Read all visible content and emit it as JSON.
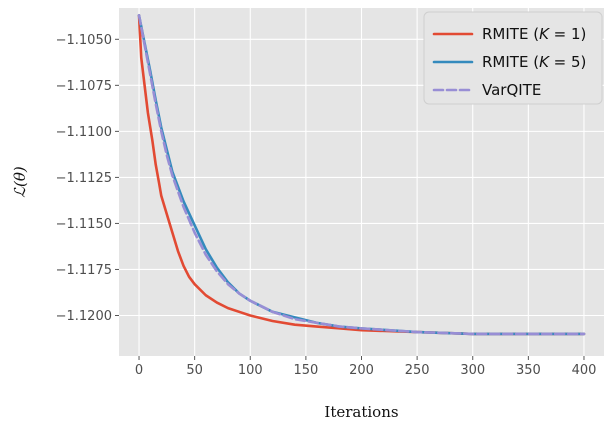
{
  "chart_data": {
    "type": "line",
    "title": "",
    "xlabel": "Iterations",
    "ylabel": "ℒ(θ)",
    "xlim": [
      -18,
      418
    ],
    "ylim": [
      -1.1222,
      -1.1033
    ],
    "grid": true,
    "legend_position": "top-right",
    "x_ticks": [
      0,
      50,
      100,
      150,
      200,
      250,
      300,
      350,
      400
    ],
    "x_tick_labels": [
      "0",
      "50",
      "100",
      "150",
      "200",
      "250",
      "300",
      "350",
      "400"
    ],
    "y_ticks": [
      -1.105,
      -1.1075,
      -1.11,
      -1.1125,
      -1.115,
      -1.1175,
      -1.12
    ],
    "y_tick_labels": [
      "−1.1050",
      "−1.1075",
      "−1.1100",
      "−1.1125",
      "−1.1150",
      "−1.1175",
      "−1.1200"
    ],
    "series": [
      {
        "name": "RMITE (K = 1)",
        "legend_label": "RMITE (",
        "legend_math": "K",
        "legend_tail": " = 1)",
        "color": "#e24a33",
        "dash": "solid",
        "x": [
          0,
          2,
          5,
          8,
          12,
          15,
          18,
          20,
          25,
          30,
          35,
          40,
          45,
          50,
          60,
          70,
          80,
          90,
          100,
          120,
          140,
          160,
          180,
          200,
          250,
          300,
          350,
          400
        ],
        "y": [
          -1.1037,
          -1.106,
          -1.1075,
          -1.109,
          -1.1105,
          -1.1118,
          -1.1128,
          -1.1135,
          -1.1145,
          -1.1155,
          -1.1165,
          -1.1173,
          -1.1179,
          -1.1183,
          -1.1189,
          -1.1193,
          -1.1196,
          -1.1198,
          -1.12,
          -1.1203,
          -1.1205,
          -1.1206,
          -1.1207,
          -1.1208,
          -1.1209,
          -1.121,
          -1.121,
          -1.121
        ]
      },
      {
        "name": "RMITE (K = 5)",
        "legend_label": "RMITE (",
        "legend_math": "K",
        "legend_tail": " = 5)",
        "color": "#348abd",
        "dash": "solid",
        "x": [
          0,
          5,
          10,
          15,
          20,
          25,
          30,
          40,
          50,
          60,
          70,
          80,
          90,
          100,
          120,
          140,
          160,
          180,
          200,
          250,
          300,
          350,
          400
        ],
        "y": [
          -1.1037,
          -1.1052,
          -1.1067,
          -1.1083,
          -1.1098,
          -1.111,
          -1.1122,
          -1.1138,
          -1.1151,
          -1.1164,
          -1.1174,
          -1.1182,
          -1.1188,
          -1.1192,
          -1.1198,
          -1.1201,
          -1.1204,
          -1.1206,
          -1.1207,
          -1.1209,
          -1.121,
          -1.121,
          -1.121
        ]
      },
      {
        "name": "VarQITE",
        "legend_label": "VarQITE",
        "legend_math": "",
        "legend_tail": "",
        "color": "#988ed5",
        "dash": "dashed",
        "x": [
          0,
          5,
          10,
          15,
          20,
          25,
          30,
          40,
          50,
          60,
          70,
          80,
          90,
          100,
          120,
          140,
          160,
          180,
          200,
          250,
          300,
          350,
          400
        ],
        "y": [
          -1.1037,
          -1.1053,
          -1.1069,
          -1.1085,
          -1.11,
          -1.1113,
          -1.1124,
          -1.1141,
          -1.1155,
          -1.1167,
          -1.1176,
          -1.1183,
          -1.1188,
          -1.1192,
          -1.1198,
          -1.1202,
          -1.1204,
          -1.1206,
          -1.1207,
          -1.1209,
          -1.121,
          -1.121,
          -1.121
        ]
      }
    ]
  }
}
